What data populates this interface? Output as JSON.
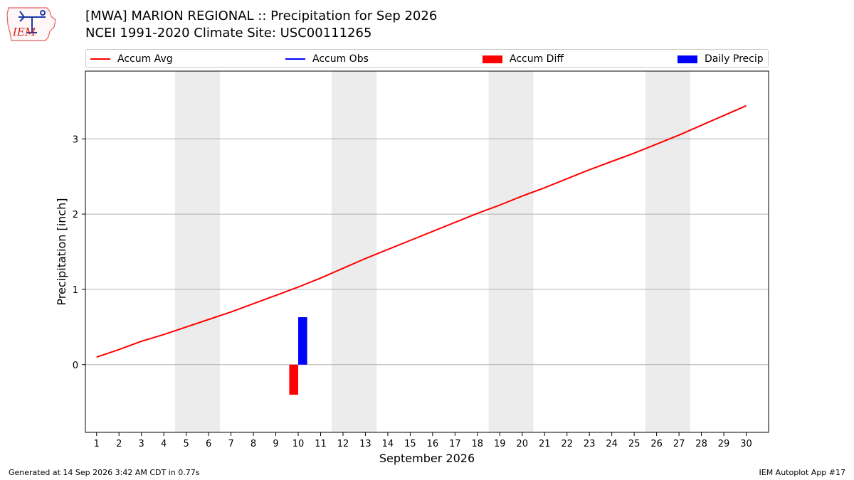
{
  "header": {
    "title": "[MWA] MARION REGIONAL :: Precipitation for Sep 2026",
    "subtitle": "NCEI 1991-2020 Climate Site: USC00111265",
    "logo_text": "IEM"
  },
  "footer": {
    "generated": "Generated at 14 Sep 2026 3:42 AM CDT in 0.77s",
    "app": "IEM Autoplot App #17"
  },
  "legend": {
    "location": "top",
    "items": [
      {
        "label": "Accum Avg",
        "kind": "line",
        "color": "#ff0000"
      },
      {
        "label": "Accum Obs",
        "kind": "line",
        "color": "#0000ff"
      },
      {
        "label": "Accum Diff",
        "kind": "bar",
        "color": "#ff0000"
      },
      {
        "label": "Daily Precip",
        "kind": "bar",
        "color": "#0000ff"
      }
    ]
  },
  "chart_data": {
    "type": "line",
    "title": "[MWA] MARION REGIONAL :: Precipitation for Sep 2026",
    "subtitle": "NCEI 1991-2020 Climate Site: USC00111265",
    "xlabel": "September 2026",
    "ylabel": "Precipitation [inch]",
    "xlim": [
      0.5,
      31
    ],
    "ylim": [
      -0.9,
      3.9
    ],
    "x_ticks": [
      1,
      2,
      3,
      4,
      5,
      6,
      7,
      8,
      9,
      10,
      11,
      12,
      13,
      14,
      15,
      16,
      17,
      18,
      19,
      20,
      21,
      22,
      23,
      24,
      25,
      26,
      27,
      28,
      29,
      30
    ],
    "y_ticks": [
      0,
      1,
      2,
      3
    ],
    "grid": "horizontal",
    "weekend_shading": [
      [
        4.5,
        6.5
      ],
      [
        11.5,
        13.5
      ],
      [
        18.5,
        20.5
      ],
      [
        25.5,
        27.5
      ]
    ],
    "shading_color": "#ececec",
    "series": [
      {
        "name": "Accum Avg",
        "type": "line",
        "color": "#ff0000",
        "x": [
          1,
          2,
          3,
          4,
          5,
          6,
          7,
          8,
          9,
          10,
          11,
          12,
          13,
          14,
          15,
          16,
          17,
          18,
          19,
          20,
          21,
          22,
          23,
          24,
          25,
          26,
          27,
          28,
          29,
          30
        ],
        "values": [
          0.1,
          0.2,
          0.31,
          0.4,
          0.5,
          0.6,
          0.7,
          0.81,
          0.92,
          1.03,
          1.15,
          1.28,
          1.41,
          1.53,
          1.65,
          1.77,
          1.89,
          2.01,
          2.12,
          2.24,
          2.35,
          2.47,
          2.59,
          2.7,
          2.81,
          2.93,
          3.05,
          3.18,
          3.31,
          3.44
        ]
      },
      {
        "name": "Accum Diff",
        "type": "bar",
        "color": "#ff0000",
        "x": [
          10
        ],
        "values": [
          -0.4
        ],
        "offset": -0.2
      },
      {
        "name": "Daily Precip",
        "type": "bar",
        "color": "#0000ff",
        "x": [
          10
        ],
        "values": [
          0.63
        ],
        "offset": 0.2
      }
    ]
  }
}
